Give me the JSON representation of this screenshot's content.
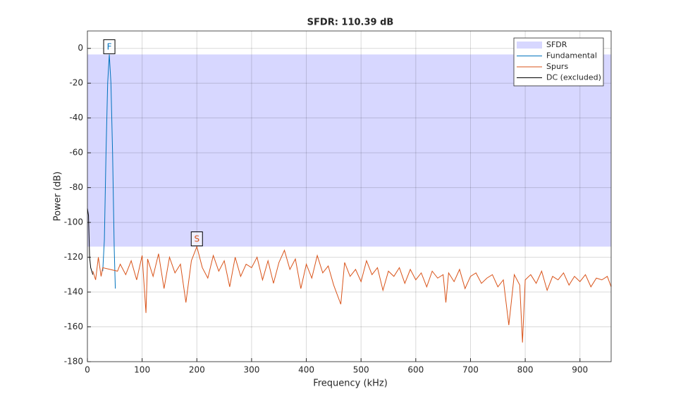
{
  "chart_data": {
    "type": "line",
    "title": "SFDR: 110.39 dB",
    "x_label": "Frequency (kHz)",
    "y_label": "Power (dB)",
    "xlim": [
      0,
      957
    ],
    "ylim": [
      -180,
      10
    ],
    "xticks": [
      0,
      100,
      200,
      300,
      400,
      500,
      600,
      700,
      800,
      900
    ],
    "yticks": [
      -180,
      -160,
      -140,
      -120,
      -100,
      -80,
      -60,
      -40,
      -20,
      0
    ],
    "grid": true,
    "legend": "upper right",
    "series": [
      {
        "name": "SFDR",
        "color": "#d7d7ff",
        "type": "band",
        "values": [
          -3.5,
          -113.89
        ]
      },
      {
        "name": "Fundamental",
        "color": "#0072bd",
        "x": [
          28,
          31,
          34,
          37,
          40,
          43,
          46,
          49,
          51
        ],
        "values": [
          -128,
          -110,
          -60,
          -20,
          -3.5,
          -20,
          -60,
          -115,
          -138
        ]
      },
      {
        "name": "Spurs",
        "color": "#d95319",
        "x": [
          10,
          15,
          20,
          25,
          28,
          55,
          60,
          70,
          80,
          90,
          100,
          107,
          110,
          120,
          130,
          140,
          150,
          160,
          170,
          180,
          190,
          200,
          210,
          220,
          230,
          240,
          250,
          260,
          270,
          280,
          290,
          300,
          310,
          320,
          330,
          340,
          350,
          360,
          370,
          380,
          390,
          400,
          410,
          420,
          430,
          440,
          450,
          463,
          470,
          480,
          490,
          500,
          510,
          520,
          530,
          540,
          550,
          560,
          570,
          580,
          590,
          600,
          610,
          620,
          630,
          640,
          650,
          655,
          660,
          670,
          680,
          690,
          700,
          710,
          720,
          730,
          740,
          750,
          760,
          770,
          780,
          790,
          795,
          800,
          810,
          820,
          830,
          840,
          850,
          860,
          870,
          880,
          890,
          900,
          910,
          920,
          930,
          940,
          950,
          957
        ],
        "values": [
          -128,
          -133,
          -120,
          -131,
          -126,
          -128,
          -124,
          -130,
          -122,
          -133,
          -119,
          -152,
          -121,
          -131,
          -118,
          -138,
          -120,
          -129,
          -124,
          -146,
          -122,
          -113.89,
          -126,
          -132,
          -119,
          -128,
          -122,
          -137,
          -120,
          -131,
          -124,
          -126,
          -120,
          -133,
          -122,
          -135,
          -123,
          -116,
          -127,
          -121,
          -138,
          -124,
          -132,
          -119,
          -129,
          -125,
          -136,
          -147,
          -123,
          -131,
          -127,
          -134,
          -122,
          -130,
          -126,
          -139,
          -128,
          -131,
          -126,
          -135,
          -127,
          -133,
          -129,
          -137,
          -128,
          -132,
          -130,
          -146,
          -129,
          -134,
          -127,
          -138,
          -131,
          -129,
          -135,
          -132,
          -130,
          -137,
          -133,
          -159,
          -130,
          -136,
          -169,
          -133,
          -130,
          -135,
          -128,
          -139,
          -131,
          -133,
          -129,
          -136,
          -131,
          -134,
          -130,
          -137,
          -132,
          -133,
          -131,
          -137
        ]
      },
      {
        "name": "DC (excluded)",
        "color": "#000000",
        "x": [
          0,
          2,
          4,
          6,
          8,
          10
        ],
        "values": [
          -92,
          -96,
          -120,
          -126,
          -128,
          -130
        ]
      }
    ],
    "annotations": [
      {
        "label": "F",
        "x": 40,
        "y": -3.5,
        "color": "#0072bd"
      },
      {
        "label": "S",
        "x": 200,
        "y": -113.89,
        "color": "#d95319"
      }
    ]
  }
}
